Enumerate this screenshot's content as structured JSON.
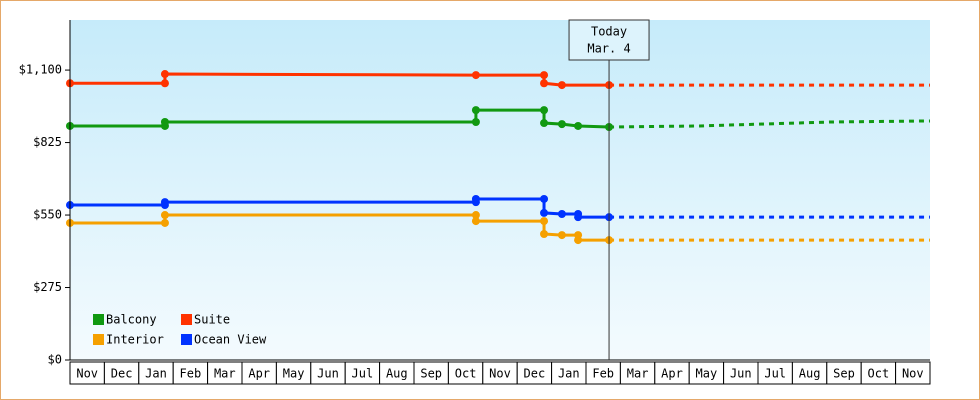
{
  "chart_data": {
    "type": "line",
    "xlim": [
      0,
      25
    ],
    "xticks": [
      {
        "value": 0.5,
        "label": "Nov"
      },
      {
        "value": 1.5,
        "label": "Dec"
      },
      {
        "value": 2.5,
        "label": "Jan"
      },
      {
        "value": 3.5,
        "label": "Feb"
      },
      {
        "value": 4.5,
        "label": "Mar"
      },
      {
        "value": 5.5,
        "label": "Apr"
      },
      {
        "value": 6.5,
        "label": "May"
      },
      {
        "value": 7.5,
        "label": "Jun"
      },
      {
        "value": 8.5,
        "label": "Jul"
      },
      {
        "value": 9.5,
        "label": "Aug"
      },
      {
        "value": 10.5,
        "label": "Sep"
      },
      {
        "value": 11.5,
        "label": "Oct"
      },
      {
        "value": 12.5,
        "label": "Nov"
      },
      {
        "value": 13.5,
        "label": "Dec"
      },
      {
        "value": 14.5,
        "label": "Jan"
      },
      {
        "value": 15.5,
        "label": "Feb"
      },
      {
        "value": 16.5,
        "label": "Mar"
      },
      {
        "value": 17.5,
        "label": "Apr"
      },
      {
        "value": 18.5,
        "label": "May"
      },
      {
        "value": 19.5,
        "label": "Jun"
      },
      {
        "value": 20.5,
        "label": "Jul"
      },
      {
        "value": 21.5,
        "label": "Aug"
      },
      {
        "value": 22.5,
        "label": "Sep"
      },
      {
        "value": 23.5,
        "label": "Oct"
      },
      {
        "value": 24.5,
        "label": "Nov"
      }
    ],
    "ylim": [
      0,
      1290
    ],
    "yticks": [
      {
        "value": 0,
        "label": "$0"
      },
      {
        "value": 275,
        "label": "$275"
      },
      {
        "value": 550,
        "label": "$550"
      },
      {
        "value": 825,
        "label": "$825"
      },
      {
        "value": 1100,
        "label": "$1,100"
      }
    ],
    "today": {
      "x": 15.67,
      "label": [
        "Today",
        "Mar. 4"
      ]
    },
    "series": [
      {
        "name": "Balcony",
        "color": "#119911",
        "x": [
          0,
          2.76,
          2.76,
          11.8,
          11.8,
          13.78,
          13.78,
          14.3,
          14.77,
          15.67
        ],
        "values": [
          888,
          888,
          903,
          903,
          948,
          948,
          899,
          895,
          888,
          884
        ],
        "forecast": {
          "x": [
            15.67,
            18.3,
            22.1,
            25
          ],
          "values": [
            884,
            888,
            903,
            907
          ]
        }
      },
      {
        "name": "Suite",
        "color": "#ff3300",
        "x": [
          0,
          2.76,
          2.76,
          11.8,
          13.78,
          13.78,
          14.3,
          15.67
        ],
        "values": [
          1050,
          1050,
          1085,
          1081,
          1081,
          1050,
          1043,
          1043
        ],
        "forecast": {
          "x": [
            15.67,
            25
          ],
          "values": [
            1043,
            1043
          ]
        }
      },
      {
        "name": "Interior",
        "color": "#f5a000",
        "x": [
          0,
          2.76,
          2.76,
          11.8,
          11.8,
          13.78,
          13.78,
          14.3,
          14.77,
          14.77,
          15.67
        ],
        "values": [
          520,
          520,
          550,
          550,
          527,
          527,
          478,
          474,
          474,
          455,
          455
        ],
        "forecast": {
          "x": [
            15.67,
            25
          ],
          "values": [
            455,
            455
          ]
        }
      },
      {
        "name": "Ocean View",
        "color": "#0033ff",
        "x": [
          0,
          2.76,
          2.76,
          11.8,
          11.8,
          13.78,
          13.78,
          14.3,
          14.77,
          14.77,
          15.67
        ],
        "values": [
          588,
          588,
          599,
          599,
          611,
          611,
          558,
          554,
          554,
          542,
          542
        ],
        "forecast": {
          "x": [
            15.67,
            25
          ],
          "values": [
            542,
            542
          ]
        }
      }
    ]
  }
}
